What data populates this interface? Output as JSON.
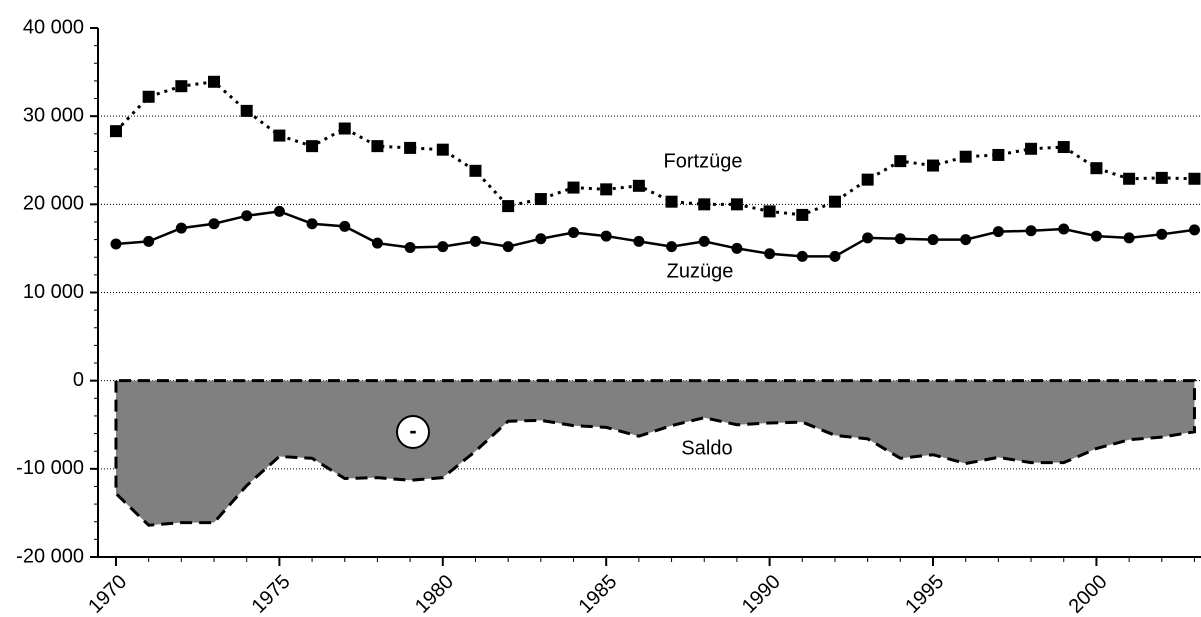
{
  "chart_data": {
    "type": "line",
    "x": [
      1970,
      1971,
      1972,
      1973,
      1974,
      1975,
      1976,
      1977,
      1978,
      1979,
      1980,
      1981,
      1982,
      1983,
      1984,
      1985,
      1986,
      1987,
      1988,
      1989,
      1990,
      1991,
      1992,
      1993,
      1994,
      1995,
      1996,
      1997,
      1998,
      1999,
      2000,
      2001,
      2002,
      2003
    ],
    "series": [
      {
        "name": "Fortzüge",
        "color": "#000000",
        "style": "dotted",
        "marker": "square",
        "values": [
          28300,
          32200,
          33400,
          33900,
          30600,
          27800,
          26600,
          28600,
          26600,
          26400,
          26200,
          23800,
          19800,
          20600,
          21900,
          21700,
          22100,
          20300,
          20000,
          20000,
          19200,
          18800,
          20300,
          22800,
          24900,
          24400,
          25400,
          25600,
          26300,
          26500,
          24100,
          22900,
          23000,
          22900
        ]
      },
      {
        "name": "Zuzüge",
        "color": "#000000",
        "style": "solid",
        "marker": "circle",
        "values": [
          15500,
          15800,
          17300,
          17800,
          18700,
          19200,
          17800,
          17500,
          15600,
          15100,
          15200,
          15800,
          15200,
          16100,
          16800,
          16400,
          15800,
          15200,
          15800,
          15000,
          14400,
          14100,
          14100,
          16200,
          16100,
          16000,
          16000,
          16900,
          17000,
          17200,
          16400,
          16200,
          16600,
          17100
        ]
      },
      {
        "name": "Saldo",
        "color": "#808080",
        "style": "area",
        "values": [
          -12800,
          -16400,
          -16100,
          -16100,
          -11900,
          -8600,
          -8800,
          -11100,
          -11000,
          -11300,
          -11000,
          -8000,
          -4600,
          -4500,
          -5100,
          -5300,
          -6300,
          -5100,
          -4200,
          -5000,
          -4800,
          -4700,
          -6200,
          -6600,
          -8800,
          -8400,
          -9400,
          -8700,
          -9300,
          -9300,
          -7700,
          -6700,
          -6400,
          -5800
        ]
      }
    ],
    "annotations": [
      "-"
    ],
    "xlim": [
      1969.45,
      2003.2
    ],
    "xticks": [
      1970,
      1975,
      1980,
      1985,
      1990,
      1995,
      2000
    ],
    "ylim": [
      -20000,
      40000
    ],
    "yticks": [
      {
        "value": -20000,
        "label": "-20 000"
      },
      {
        "value": -10000,
        "label": "-10 000"
      },
      0,
      {
        "value": 10000,
        "label": "10 000"
      },
      {
        "value": 20000,
        "label": "20 000"
      },
      {
        "value": 30000,
        "label": "30 000"
      },
      {
        "value": 40000,
        "label": "40 000"
      }
    ],
    "grid": true
  }
}
